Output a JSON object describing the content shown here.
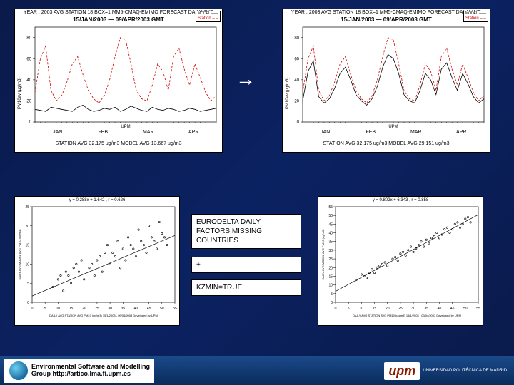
{
  "background_gradient": [
    "#0a1a4a",
    "#0b2262",
    "#0a1a4a"
  ],
  "timeseries": {
    "header_l1": "YEAR : 2003 AVG STATION  18 BOX=1  MM5-CMAQ-EMIMO  FORECAST DAILY AVG",
    "header_l2": "15/JAN/2003  —  09/APR/2003 GMT",
    "legend_model": "MODEL  ——",
    "legend_station": "Station  – –",
    "legend_station_color": "#d00000",
    "xlabel": "UPM",
    "xticks": [
      "15",
      "20",
      "25",
      "30",
      "5",
      "10",
      "15",
      "20",
      "25",
      "5",
      "10",
      "15",
      "20",
      "25",
      "30",
      "5"
    ],
    "xmonths": [
      "JAN",
      "FEB",
      "MAR",
      "APR"
    ],
    "ylabel": "PM10av (µg/m3)",
    "yticks": [
      0,
      20,
      40,
      60,
      80
    ],
    "ylim": [
      0,
      90
    ],
    "model_color": "#000000",
    "station_color": "#d00000",
    "left": {
      "footer": "STATION AVG  32.175 ug/m3   MODEL AVG  13.667 ug/m3",
      "model_y": [
        12,
        11,
        10,
        14,
        13,
        12,
        11,
        10,
        14,
        16,
        12,
        10,
        11,
        13,
        12,
        14,
        10,
        12,
        15,
        13,
        11,
        10,
        14,
        12,
        11,
        13,
        12,
        10,
        11,
        13,
        12,
        10,
        11,
        12,
        13
      ],
      "station_y": [
        28,
        60,
        72,
        30,
        20,
        25,
        38,
        55,
        62,
        45,
        30,
        22,
        18,
        25,
        40,
        62,
        80,
        78,
        55,
        30,
        22,
        20,
        35,
        55,
        48,
        30,
        62,
        70,
        50,
        35,
        55,
        42,
        28,
        20,
        25
      ]
    },
    "right": {
      "footer": "STATION AVG  32.175 ug/m3   MODEL AVG  29.151 ug/m3",
      "model_y": [
        20,
        48,
        58,
        24,
        18,
        22,
        32,
        46,
        52,
        40,
        26,
        20,
        16,
        22,
        34,
        52,
        64,
        60,
        46,
        26,
        20,
        18,
        30,
        46,
        40,
        26,
        50,
        56,
        42,
        30,
        46,
        36,
        24,
        18,
        22
      ],
      "station_y": [
        28,
        60,
        72,
        30,
        20,
        25,
        38,
        55,
        62,
        45,
        30,
        22,
        18,
        25,
        40,
        62,
        80,
        78,
        55,
        30,
        22,
        20,
        35,
        55,
        48,
        30,
        62,
        70,
        50,
        35,
        55,
        42,
        28,
        20,
        25
      ]
    }
  },
  "arrow": "→",
  "scatter": {
    "left": {
      "eq": "y = 0.288x + 1.642  ,   r = 0.626",
      "xlim": [
        0,
        55
      ],
      "ylim": [
        0,
        25
      ],
      "xticks": [
        0,
        5,
        10,
        15,
        20,
        25,
        30,
        35,
        40,
        45,
        50,
        55
      ],
      "yticks": [
        0,
        5,
        10,
        15,
        20,
        25
      ],
      "xlabel": "DAILY AVG STATION AVG PM10 (ug/m3)   15/1/2003 - 09/04/2003   Developed by UPM",
      "ylabel": "DAILY AVG MODEL AVG PM10 (ug/m3)",
      "slope": 0.288,
      "intercept": 1.642,
      "points": [
        [
          8,
          4
        ],
        [
          10,
          6
        ],
        [
          12,
          3
        ],
        [
          14,
          7
        ],
        [
          15,
          5
        ],
        [
          18,
          8
        ],
        [
          20,
          6
        ],
        [
          22,
          9
        ],
        [
          24,
          7
        ],
        [
          25,
          11
        ],
        [
          27,
          8
        ],
        [
          28,
          13
        ],
        [
          30,
          10
        ],
        [
          32,
          12
        ],
        [
          34,
          9
        ],
        [
          35,
          14
        ],
        [
          36,
          11
        ],
        [
          38,
          15
        ],
        [
          40,
          12
        ],
        [
          42,
          16
        ],
        [
          44,
          13
        ],
        [
          46,
          17
        ],
        [
          48,
          14
        ],
        [
          50,
          18
        ],
        [
          52,
          15
        ],
        [
          16,
          9
        ],
        [
          19,
          11
        ],
        [
          23,
          10
        ],
        [
          26,
          12
        ],
        [
          29,
          15
        ],
        [
          31,
          13
        ],
        [
          33,
          16
        ],
        [
          37,
          17
        ],
        [
          39,
          14
        ],
        [
          41,
          19
        ],
        [
          43,
          15
        ],
        [
          45,
          20
        ],
        [
          47,
          16
        ],
        [
          49,
          21
        ],
        [
          51,
          17
        ],
        [
          11,
          7
        ],
        [
          13,
          8
        ],
        [
          17,
          10
        ]
      ]
    },
    "right": {
      "eq": "y = 0.802x + 6.343  ,   r = 0.858",
      "xlim": [
        0,
        55
      ],
      "ylim": [
        0,
        55
      ],
      "xticks": [
        0,
        5,
        10,
        15,
        20,
        25,
        30,
        35,
        40,
        45,
        50,
        55
      ],
      "yticks": [
        0,
        5,
        10,
        15,
        20,
        25,
        30,
        35,
        40,
        45,
        50,
        55
      ],
      "xlabel": "DAILY AVG STATION AVG PM10 (ug/m3)   15/1/2003 - 09/04/2003   Developed by UPM",
      "ylabel": "DAILY AVG MODEL AVG PM10 (ug/m3)",
      "slope": 0.802,
      "intercept": 6.343,
      "points": [
        [
          8,
          13
        ],
        [
          10,
          16
        ],
        [
          12,
          14
        ],
        [
          14,
          19
        ],
        [
          15,
          17
        ],
        [
          18,
          22
        ],
        [
          20,
          21
        ],
        [
          22,
          25
        ],
        [
          24,
          24
        ],
        [
          25,
          28
        ],
        [
          27,
          27
        ],
        [
          28,
          30
        ],
        [
          30,
          29
        ],
        [
          32,
          33
        ],
        [
          34,
          32
        ],
        [
          35,
          36
        ],
        [
          36,
          34
        ],
        [
          38,
          38
        ],
        [
          40,
          37
        ],
        [
          42,
          42
        ],
        [
          44,
          40
        ],
        [
          46,
          45
        ],
        [
          48,
          43
        ],
        [
          50,
          48
        ],
        [
          52,
          46
        ],
        [
          16,
          20
        ],
        [
          19,
          23
        ],
        [
          23,
          26
        ],
        [
          26,
          29
        ],
        [
          29,
          32
        ],
        [
          31,
          31
        ],
        [
          33,
          35
        ],
        [
          37,
          37
        ],
        [
          39,
          40
        ],
        [
          41,
          39
        ],
        [
          43,
          43
        ],
        [
          45,
          42
        ],
        [
          47,
          46
        ],
        [
          49,
          45
        ],
        [
          51,
          49
        ],
        [
          11,
          15
        ],
        [
          13,
          17
        ],
        [
          17,
          21
        ]
      ]
    },
    "point_color": "#000000",
    "line_color": "#000000",
    "line_width": 0.7,
    "point_radius": 1.2
  },
  "note": {
    "line1": "EURODELTA DAILY",
    "line2": "FACTORS MISSING",
    "line3": "COUNTRIES",
    "plus": "+",
    "line4": "KZMIN=TRUE"
  },
  "footer": {
    "group_l1": "Environmental Software and Modelling",
    "group_l2": "Group http://artico.lma.fi.upm.es",
    "upm_text": "upm",
    "upm_sub1": "UNIVERSIDAD POLITÉCNICA DE MADRID"
  }
}
